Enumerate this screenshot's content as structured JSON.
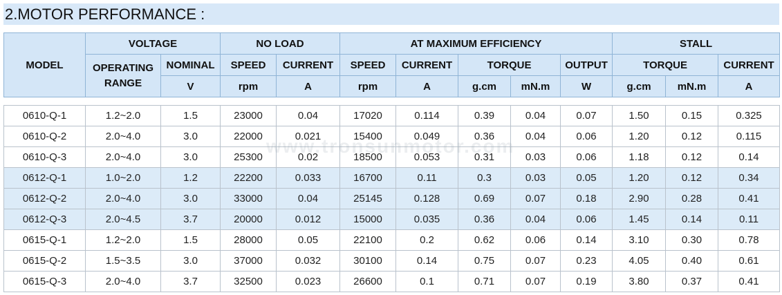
{
  "title": "2.MOTOR PERFORMANCE :",
  "watermark": "www.tronsunmotor.com",
  "header": {
    "row1": [
      "MODEL",
      "VOLTAGE",
      "NO LOAD",
      "AT MAXIMUM EFFICIENCY",
      "STALL"
    ],
    "row2": [
      "OPERATING RANGE",
      "NOMINAL",
      "SPEED",
      "CURRENT",
      "SPEED",
      "CURRENT",
      "TORQUE",
      "OUTPUT",
      "TORQUE",
      "CURRENT"
    ],
    "row3": [
      "V",
      "rpm",
      "A",
      "rpm",
      "A",
      "g.cm",
      "mN.m",
      "W",
      "g.cm",
      "mN.m",
      "A"
    ]
  },
  "table": {
    "rows": [
      [
        "0610-Q-1",
        "1.2~2.0",
        "1.5",
        "23000",
        "0.04",
        "17020",
        "0.114",
        "0.39",
        "0.04",
        "0.07",
        "1.50",
        "0.15",
        "0.325"
      ],
      [
        "0610-Q-2",
        "2.0~4.0",
        "3.0",
        "22000",
        "0.021",
        "15400",
        "0.049",
        "0.36",
        "0.04",
        "0.06",
        "1.20",
        "0.12",
        "0.115"
      ],
      [
        "0610-Q-3",
        "2.0~4.0",
        "3.0",
        "25300",
        "0.02",
        "18500",
        "0.053",
        "0.31",
        "0.03",
        "0.06",
        "1.18",
        "0.12",
        "0.14"
      ],
      [
        "0612-Q-1",
        "1.0~2.0",
        "1.2",
        "22200",
        "0.033",
        "16700",
        "0.11",
        "0.3",
        "0.03",
        "0.05",
        "1.20",
        "0.12",
        "0.34"
      ],
      [
        "0612-Q-2",
        "2.0~4.0",
        "3.0",
        "33000",
        "0.04",
        "25145",
        "0.128",
        "0.69",
        "0.07",
        "0.18",
        "2.90",
        "0.28",
        "0.41"
      ],
      [
        "0612-Q-3",
        "2.0~4.5",
        "3.7",
        "20000",
        "0.012",
        "15000",
        "0.035",
        "0.36",
        "0.04",
        "0.06",
        "1.45",
        "0.14",
        "0.11"
      ],
      [
        "0615-Q-1",
        "1.2~2.0",
        "1.5",
        "28000",
        "0.05",
        "22100",
        "0.2",
        "0.62",
        "0.06",
        "0.14",
        "3.10",
        "0.30",
        "0.78"
      ],
      [
        "0615-Q-2",
        "1.5~3.5",
        "3.0",
        "37000",
        "0.032",
        "30100",
        "0.14",
        "0.75",
        "0.07",
        "0.23",
        "4.05",
        "0.40",
        "0.61"
      ],
      [
        "0615-Q-3",
        "2.0~4.0",
        "3.7",
        "32500",
        "0.023",
        "26600",
        "0.1",
        "0.71",
        "0.07",
        "0.19",
        "3.80",
        "0.37",
        "0.41"
      ]
    ]
  }
}
